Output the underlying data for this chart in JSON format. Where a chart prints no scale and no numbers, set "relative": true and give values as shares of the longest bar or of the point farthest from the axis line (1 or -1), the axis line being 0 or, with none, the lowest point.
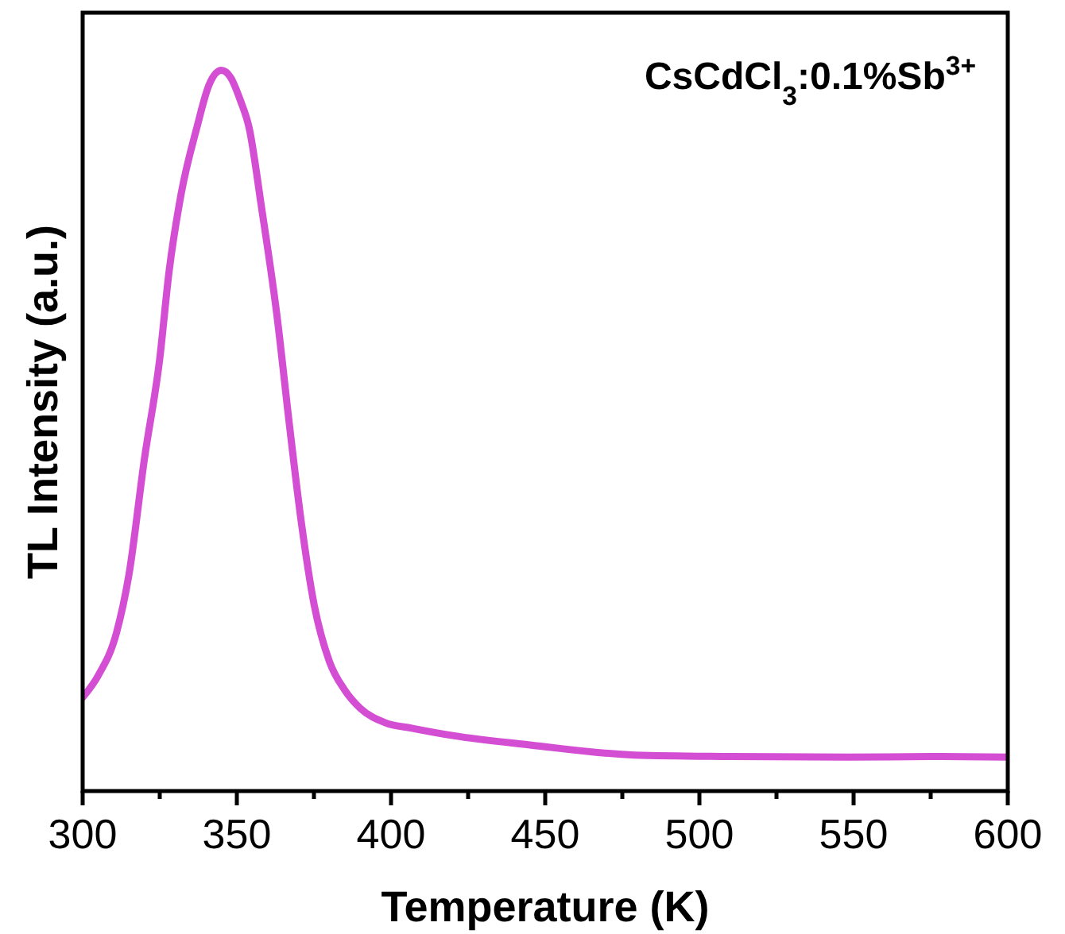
{
  "chart_data": {
    "type": "line",
    "xlabel": "Temperature (K)",
    "ylabel": "TL Intensity (a.u.)",
    "annotations": [
      "CsCdCl$_{3}$:0.1%Sb$^{3+}$"
    ],
    "relative": true,
    "tick_labels": "x",
    "xlim": [
      300,
      600
    ],
    "xticks": [
      300,
      {
        "value": 325,
        "label": null
      },
      350,
      {
        "value": 375,
        "label": null
      },
      400,
      {
        "value": 425,
        "label": null
      },
      450,
      {
        "value": 475,
        "label": null
      },
      500,
      {
        "value": 525,
        "label": null
      },
      550,
      {
        "value": 575,
        "label": null
      },
      600
    ],
    "x": [
      300,
      305,
      311,
      315,
      320,
      325,
      328,
      332,
      337,
      341,
      345,
      348,
      351,
      354,
      358,
      363,
      367,
      371,
      375,
      380,
      385,
      390,
      398,
      407,
      420,
      445,
      479,
      510,
      548,
      575,
      600
    ],
    "series": [
      {
        "color": "#d44ed4",
        "values": [
          0.13,
          0.16,
          0.22,
          0.3,
          0.46,
          0.6,
          0.72,
          0.83,
          0.92,
          0.98,
          1,
          0.99,
          0.96,
          0.92,
          0.81,
          0.66,
          0.51,
          0.37,
          0.26,
          0.18,
          0.14,
          0.115,
          0.095,
          0.087,
          0.077,
          0.064,
          0.05,
          0.048,
          0.047,
          0.048,
          0.047
        ]
      }
    ],
    "grid": false,
    "marker": "none",
    "line_style": "solid"
  }
}
